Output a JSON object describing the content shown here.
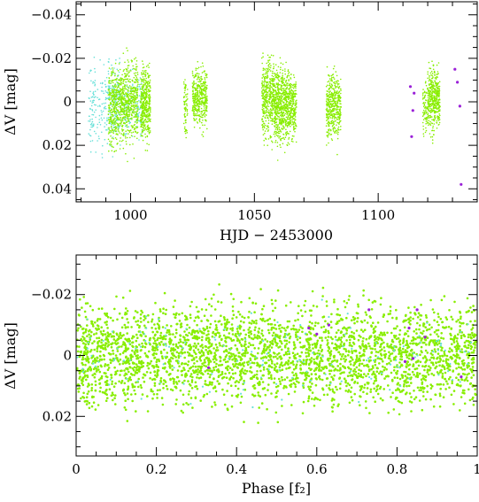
{
  "chart_data": [
    {
      "type": "scatter",
      "title": "",
      "xlabel": "HJD − 2453000",
      "ylabel": "ΔV [mag]",
      "xlim": [
        978,
        1140
      ],
      "ylim": [
        0.046,
        -0.046
      ],
      "y_inverted": true,
      "xticks": [
        1000,
        1050,
        1100
      ],
      "xtick_labels": [
        "1000",
        "1050",
        "1100"
      ],
      "yticks": [
        -0.04,
        -0.02,
        0,
        0.02,
        0.04
      ],
      "ytick_labels": [
        "−0.04",
        "−0.02",
        "0",
        "0.02",
        "0.04"
      ],
      "grid": false,
      "series": [
        {
          "color": "#66e0d8",
          "observing_runs": [
            {
              "x_range": [
                983,
                986
              ],
              "y_range": [
                -0.036,
                0.038
              ],
              "density": "sparse"
            },
            {
              "x_range": [
                986.5,
                991
              ],
              "y_range": [
                -0.034,
                0.04
              ],
              "density": "sparse"
            },
            {
              "x_range": [
                991,
                996
              ],
              "y_range": [
                -0.034,
                0.036
              ],
              "density": "medium"
            },
            {
              "x_range": [
                997,
                1001
              ],
              "y_range": [
                -0.024,
                0.03
              ],
              "density": "sparse"
            },
            {
              "x_range": [
                1002,
                1005
              ],
              "y_range": [
                -0.022,
                0.028
              ],
              "density": "sparse"
            }
          ]
        },
        {
          "color": "#88ee00",
          "observing_runs": [
            {
              "x_range": [
                991,
                997
              ],
              "y_range": [
                -0.03,
                0.034
              ],
              "density": "dense"
            },
            {
              "x_range": [
                997,
                1003
              ],
              "y_range": [
                -0.036,
                0.036
              ],
              "density": "dense"
            },
            {
              "x_range": [
                1004,
                1008
              ],
              "y_range": [
                -0.028,
                0.03
              ],
              "density": "dense"
            },
            {
              "x_range": [
                1021.5,
                1023
              ],
              "y_range": [
                -0.026,
                0.03
              ],
              "density": "sparse"
            },
            {
              "x_range": [
                1025,
                1031
              ],
              "y_range": [
                -0.026,
                0.022
              ],
              "density": "dense"
            },
            {
              "x_range": [
                1053,
                1058
              ],
              "y_range": [
                -0.036,
                0.032
              ],
              "density": "dense"
            },
            {
              "x_range": [
                1058,
                1062
              ],
              "y_range": [
                -0.03,
                0.034
              ],
              "density": "dense"
            },
            {
              "x_range": [
                1062,
                1067
              ],
              "y_range": [
                -0.026,
                0.03
              ],
              "density": "dense"
            },
            {
              "x_range": [
                1079,
                1085
              ],
              "y_range": [
                -0.026,
                0.03
              ],
              "density": "dense"
            },
            {
              "x_range": [
                1118,
                1120
              ],
              "y_range": [
                -0.02,
                0.026
              ],
              "density": "sparse"
            },
            {
              "x_range": [
                1120,
                1125
              ],
              "y_range": [
                -0.028,
                0.026
              ],
              "density": "dense"
            }
          ]
        },
        {
          "color": "#9a20d8",
          "points": [
            [
              1113,
              -0.007
            ],
            [
              1114,
              0.004
            ],
            [
              1113.5,
              0.016
            ],
            [
              1114.5,
              -0.004
            ],
            [
              1131,
              -0.015
            ],
            [
              1133,
              0.002
            ],
            [
              1133.5,
              0.038
            ],
            [
              1132,
              -0.009
            ]
          ]
        }
      ]
    },
    {
      "type": "scatter",
      "title": "",
      "xlabel": "Phase [f₂]",
      "ylabel": "ΔV [mag]",
      "xlim": [
        0,
        1
      ],
      "ylim": [
        0.033,
        -0.033
      ],
      "y_inverted": true,
      "xticks": [
        0,
        0.2,
        0.4,
        0.6,
        0.8,
        1
      ],
      "xtick_labels": [
        "0",
        "0.2",
        "0.4",
        "0.6",
        "0.8",
        "1"
      ],
      "yticks": [
        -0.02,
        0,
        0.02
      ],
      "ytick_labels": [
        "−0.02",
        "0",
        "0.02"
      ],
      "grid": false,
      "series": [
        {
          "color": "#88ee00",
          "phase_range": [
            0,
            1
          ],
          "y_range": [
            -0.033,
            0.033
          ],
          "density": "dense"
        },
        {
          "color": "#66e0d8",
          "phase_range": [
            0,
            1
          ],
          "y_range": [
            -0.025,
            0.028
          ],
          "density": "sparse"
        },
        {
          "color": "#9a20d8",
          "points": [
            [
              0.33,
              0.004
            ],
            [
              0.58,
              -0.009
            ],
            [
              0.6,
              -0.007
            ],
            [
              0.63,
              -0.01
            ],
            [
              0.73,
              -0.015
            ],
            [
              0.82,
              0.002
            ],
            [
              0.83,
              -0.009
            ],
            [
              0.84,
              0.001
            ],
            [
              0.85,
              -0.015
            ],
            [
              0.87,
              -0.006
            ],
            [
              0.96,
              0.007
            ]
          ]
        }
      ]
    }
  ]
}
